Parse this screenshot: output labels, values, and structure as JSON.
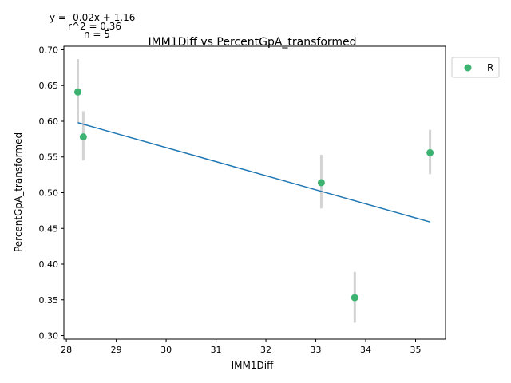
{
  "chart_data": {
    "type": "scatter",
    "title": "IMM1Diff vs PercentGpA_transformed",
    "xlabel": "IMM1Diff",
    "ylabel": "PercentGpA_transformed",
    "xlim": [
      27.95,
      35.6
    ],
    "ylim": [
      0.295,
      0.705
    ],
    "xticks": [
      28,
      29,
      30,
      31,
      32,
      33,
      34,
      35
    ],
    "xtick_labels": [
      "28",
      "29",
      "30",
      "31",
      "32",
      "33",
      "34",
      "35"
    ],
    "yticks": [
      0.3,
      0.35,
      0.4,
      0.45,
      0.5,
      0.55,
      0.6,
      0.65,
      0.7
    ],
    "ytick_labels": [
      "0.30",
      "0.35",
      "0.40",
      "0.45",
      "0.50",
      "0.55",
      "0.60",
      "0.65",
      "0.70"
    ],
    "grid": false,
    "legend": {
      "placement": "right-of-plot",
      "entries": [
        "R"
      ]
    },
    "colors": {
      "points": "#3cb371",
      "fit_line": "#1f77b4",
      "error_bars": "#d3d3d3"
    },
    "series": [
      {
        "name": "R",
        "points": [
          {
            "x": 28.23,
            "y": 0.641,
            "err_low": 0.598,
            "err_high": 0.687
          },
          {
            "x": 28.34,
            "y": 0.578,
            "err_low": 0.545,
            "err_high": 0.614
          },
          {
            "x": 33.11,
            "y": 0.514,
            "err_low": 0.478,
            "err_high": 0.553
          },
          {
            "x": 33.78,
            "y": 0.353,
            "err_low": 0.318,
            "err_high": 0.389
          },
          {
            "x": 35.29,
            "y": 0.556,
            "err_low": 0.526,
            "err_high": 0.588
          }
        ]
      }
    ],
    "fit_line": {
      "x_start": 28.23,
      "y_start": 0.598,
      "x_end": 35.29,
      "y_end": 0.459
    },
    "annotations": {
      "equation": "y = -0.02x + 1.16",
      "r2": "r^2 = 0.36",
      "n": "n = 5"
    }
  }
}
